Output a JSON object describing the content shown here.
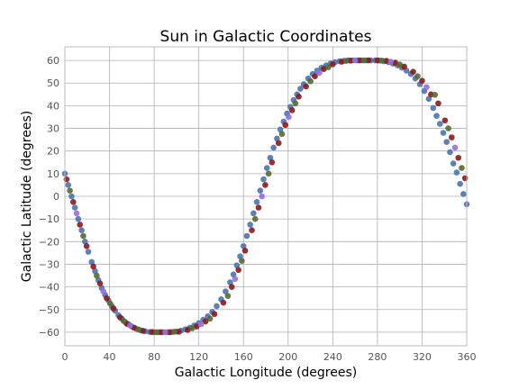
{
  "chart_data": {
    "type": "scatter",
    "title": "Sun in Galactic Coordinates",
    "xlabel": "Galactic Longitude (degrees)",
    "ylabel": "Galactic Latitude (degrees)",
    "xlim": [
      0,
      360
    ],
    "ylim": [
      -66,
      66
    ],
    "xticks": [
      0,
      40,
      80,
      120,
      160,
      200,
      240,
      280,
      320,
      360
    ],
    "yticks": [
      -60,
      -50,
      -40,
      -30,
      -20,
      -10,
      0,
      10,
      20,
      30,
      40,
      50,
      60
    ],
    "xtick_labels": [
      "0",
      "40",
      "80",
      "120",
      "160",
      "200",
      "240",
      "280",
      "320",
      "360"
    ],
    "ytick_labels": [
      "−60",
      "−50",
      "−40",
      "−30",
      "−20",
      "−10",
      "0",
      "10",
      "20",
      "30",
      "40",
      "50",
      "60"
    ],
    "grid": true,
    "series": [
      {
        "color": "#4c72b0",
        "x": [
          0,
          3,
          6,
          9,
          12,
          15,
          18,
          21,
          24,
          27,
          30,
          33,
          36,
          39,
          42,
          45,
          48,
          51,
          54,
          57,
          60,
          64,
          68,
          72,
          76,
          80,
          84,
          88,
          92,
          96,
          100,
          104,
          108,
          112,
          116,
          120,
          124,
          128,
          132,
          136,
          140,
          144,
          148,
          151,
          154,
          157,
          160,
          163,
          166,
          169,
          172,
          175,
          178,
          181,
          184,
          187,
          190,
          193,
          196,
          199,
          202,
          205,
          208,
          211,
          214,
          218,
          222,
          226,
          230,
          234,
          238,
          242,
          246,
          250,
          254,
          258,
          262,
          266,
          270,
          274,
          278,
          282,
          286,
          290,
          294,
          298,
          302,
          306,
          310,
          314,
          318,
          322,
          326,
          330,
          333,
          336,
          339,
          342,
          345,
          348,
          351,
          354,
          357,
          360
        ],
        "y": [
          10,
          5,
          0,
          -5,
          -10,
          -15,
          -20,
          -24.5,
          -29,
          -33,
          -37,
          -40.5,
          -43.5,
          -46,
          -48.5,
          -50.5,
          -52.5,
          -54,
          -55.5,
          -56.5,
          -57.5,
          -58.5,
          -59.2,
          -59.6,
          -59.9,
          -60,
          -60,
          -60,
          -60,
          -59.9,
          -59.7,
          -59.3,
          -58.7,
          -58,
          -57,
          -56,
          -54.5,
          -53,
          -51,
          -48.5,
          -45.5,
          -42,
          -38,
          -34.5,
          -30.5,
          -26.5,
          -22,
          -17.5,
          -12.5,
          -7.5,
          -2.5,
          2.5,
          7.5,
          12.5,
          17,
          21.5,
          25.5,
          29.5,
          33,
          36.5,
          39.5,
          42.5,
          45,
          47.5,
          49.5,
          52,
          54,
          55.5,
          56.8,
          57.8,
          58.6,
          59.2,
          59.6,
          59.8,
          60,
          60,
          60,
          60,
          60,
          60,
          60,
          59.9,
          59.6,
          59.2,
          58.6,
          57.8,
          56.8,
          55.5,
          54,
          52,
          49.5,
          46.5,
          43,
          39,
          35.5,
          32,
          28,
          24,
          19.5,
          14.5,
          10.5,
          5.5,
          1,
          -3.5
        ]
      },
      {
        "color": "#8b1a1a",
        "x": [
          1.5,
          7.5,
          13.5,
          19.5,
          25.5,
          31.5,
          37.5,
          43.5,
          49.5,
          55.5,
          62,
          70,
          78,
          86,
          94,
          102,
          110,
          118,
          126,
          134,
          142,
          149.5,
          155.5,
          161.5,
          167.5,
          173.5,
          179.5,
          185.5,
          191.5,
          197.5,
          203.5,
          209.5,
          216,
          224,
          232,
          240,
          248,
          256,
          264,
          272,
          280,
          288,
          296,
          304,
          312,
          320,
          328,
          334.5,
          340.5,
          346.5,
          352.5,
          358.5
        ],
        "y": [
          7.5,
          -2.5,
          -12.5,
          -22,
          -31,
          -38.5,
          -45,
          -49.5,
          -53.5,
          -56.3,
          -58,
          -59.4,
          -59.9,
          -60,
          -60,
          -59.8,
          -59,
          -57.5,
          -55.3,
          -52,
          -47,
          -40,
          -32.5,
          -24,
          -15,
          -5,
          5,
          15,
          23.5,
          31.5,
          38,
          44,
          48.5,
          53,
          56.2,
          58.3,
          59.4,
          59.9,
          60,
          60,
          60,
          59.8,
          59,
          57.3,
          55,
          51,
          45,
          41,
          33.5,
          26,
          17,
          8
        ]
      },
      {
        "color": "#556b2f",
        "x": [
          4.5,
          16.5,
          28.5,
          40.5,
          52.5,
          66,
          82,
          98,
          114,
          130,
          146,
          158.5,
          170.5,
          182.5,
          194.5,
          206.5,
          220,
          236,
          252,
          268,
          284,
          300,
          316,
          331.5,
          343.5,
          355.5
        ],
        "y": [
          2.5,
          -17.5,
          -35,
          -47.3,
          -55,
          -58.8,
          -60,
          -59.8,
          -58.3,
          -54,
          -44,
          -28.5,
          -10,
          10,
          27.5,
          41,
          50.8,
          57,
          59.8,
          60,
          59.9,
          58.2,
          53,
          44.8,
          30,
          12.5
        ]
      },
      {
        "color": "#9370db",
        "x": [
          10.5,
          34.5,
          58.5,
          90,
          122,
          152.5,
          176.5,
          200.5,
          228,
          260,
          292,
          324,
          349.5
        ],
        "y": [
          -7.5,
          -42,
          -57,
          -60,
          -56.5,
          -36.5,
          0,
          35,
          54.5,
          60,
          59.4,
          48.2,
          21.5
        ]
      }
    ]
  }
}
